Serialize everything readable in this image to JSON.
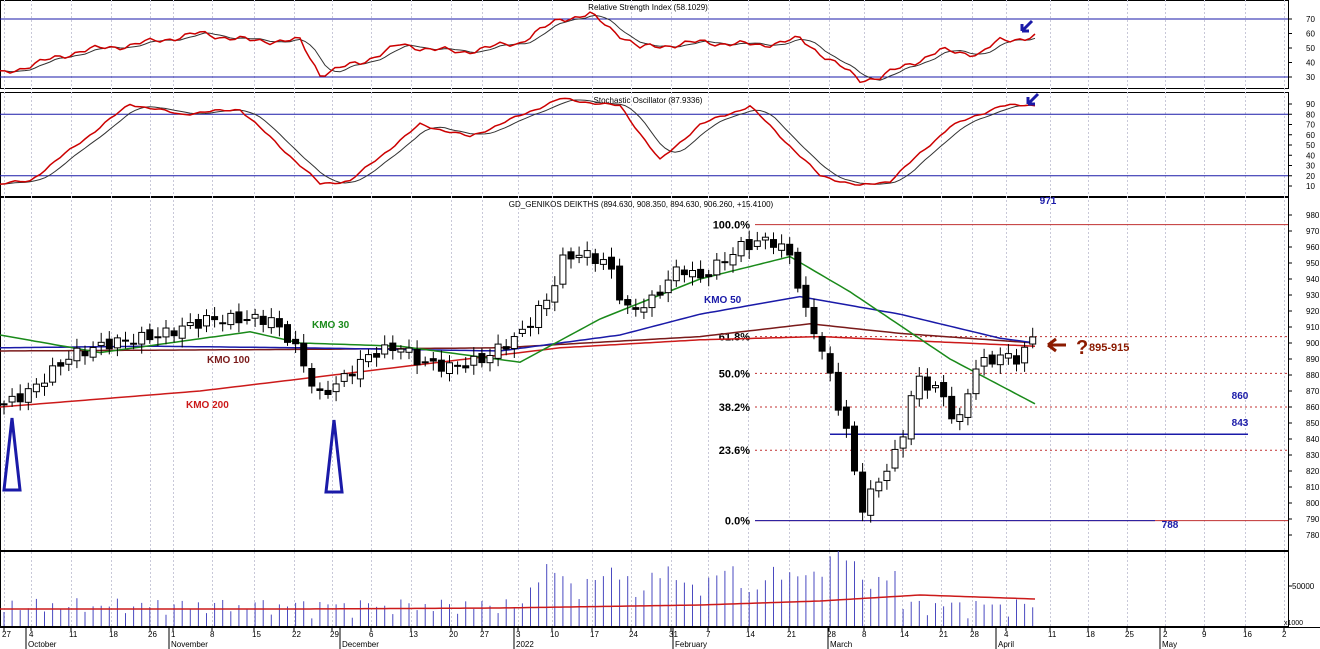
{
  "colors": {
    "rsi_line": "#cc0000",
    "signal_line": "#333333",
    "guide_blue": "#1a1aa8",
    "kmo30": "#1a8a1a",
    "kmo50": "#1a1aa8",
    "kmo100": "#7a1a1a",
    "kmo200": "#cc1a1a",
    "fib_dotted": "#c03030",
    "volume": "#4a4ac0",
    "annotation": "#8b1a00",
    "grid": "#c8c8d8"
  },
  "chart_data": [
    {
      "type": "line",
      "name": "rsi",
      "title": "Relative Strength Index (58.1029)",
      "y_ticks": [
        "70",
        "60",
        "50",
        "40",
        "30"
      ],
      "ylim": [
        20,
        78
      ],
      "guides": [
        70,
        30
      ],
      "last_value": 58.1029
    },
    {
      "type": "line",
      "name": "stochastic",
      "title": "Stochastic Oscillator (87.9336)",
      "y_ticks": [
        "90",
        "80",
        "70",
        "60",
        "50",
        "40",
        "30",
        "20",
        "10"
      ],
      "ylim": [
        0,
        100
      ],
      "guides": [
        80,
        20
      ],
      "last_value": 87.9336
    },
    {
      "type": "candlestick",
      "name": "price",
      "title": "GD_GENIKOS DEIKTHS (894.630, 908.350, 894.630, 906.260, +15.4100)",
      "y_ticks": [
        "980",
        "970",
        "960",
        "950",
        "940",
        "930",
        "920",
        "910",
        "900",
        "890",
        "880",
        "870",
        "860",
        "850",
        "840",
        "830",
        "820",
        "810",
        "800",
        "790",
        "780"
      ],
      "ylim": [
        770,
        985
      ],
      "last_ohlc": {
        "open": 894.63,
        "high": 908.35,
        "low": 894.63,
        "close": 906.26,
        "change": 15.41
      },
      "fibonacci": [
        {
          "label": "100.0%",
          "value": 974
        },
        {
          "label": "61.8%",
          "value": 904
        },
        {
          "label": "50.0%",
          "value": 881
        },
        {
          "label": "38.2%",
          "value": 860
        },
        {
          "label": "23.6%",
          "value": 833
        },
        {
          "label": "0.0%",
          "value": 789
        }
      ],
      "levels": [
        {
          "label": "971",
          "value": 971
        },
        {
          "label": "860",
          "value": 860
        },
        {
          "label": "843",
          "value": 843
        },
        {
          "label": "788",
          "value": 788
        }
      ],
      "moving_averages": [
        "KMO 30",
        "KMO 50",
        "KMO 100",
        "KMO 200"
      ],
      "target_annotation": {
        "glyph": "?",
        "text": "895-915"
      }
    },
    {
      "type": "bar",
      "name": "volume",
      "y_ticks": [
        "50000"
      ],
      "unit_label": "x1000"
    }
  ],
  "x_axis": {
    "days": [
      "27",
      "4",
      "11",
      "18",
      "26",
      "1",
      "8",
      "15",
      "22",
      "29",
      "6",
      "13",
      "20",
      "27",
      "3",
      "10",
      "17",
      "24",
      "31",
      "7",
      "14",
      "21",
      "28",
      "8",
      "14",
      "21",
      "28",
      "4",
      "11",
      "18",
      "25",
      "2",
      "9",
      "16",
      "2"
    ],
    "months": [
      "October",
      "November",
      "December",
      "2022",
      "February",
      "March",
      "April",
      "May"
    ]
  }
}
